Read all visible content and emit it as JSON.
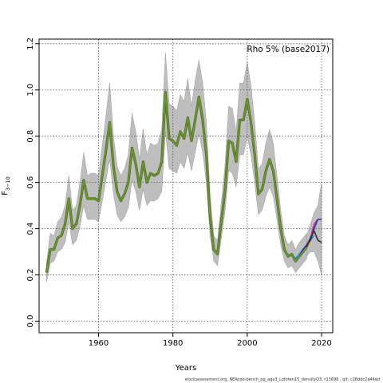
{
  "chart_data": {
    "type": "line",
    "title": "",
    "annotation": "Rho 5% (base2017)",
    "xlabel": "Years",
    "ylabel": "F",
    "ylabel_subscript": "3−10",
    "xlim": [
      1944,
      2023
    ],
    "ylim": [
      -0.05,
      1.22
    ],
    "xticks": [
      1960,
      1980,
      2000,
      2020
    ],
    "yticks": [
      0.0,
      0.2,
      0.4,
      0.6,
      0.8,
      1.0,
      1.2
    ],
    "grid": true,
    "legend": "none",
    "band_color": "#bebebe",
    "main_series": {
      "color": "#6a9a2a",
      "x": [
        1946,
        1947,
        1948,
        1949,
        1950,
        1951,
        1952,
        1953,
        1954,
        1955,
        1956,
        1957,
        1958,
        1959,
        1960,
        1961,
        1962,
        1963,
        1964,
        1965,
        1966,
        1967,
        1968,
        1969,
        1970,
        1971,
        1972,
        1973,
        1974,
        1975,
        1976,
        1977,
        1978,
        1979,
        1980,
        1981,
        1982,
        1983,
        1984,
        1985,
        1986,
        1987,
        1988,
        1989,
        1990,
        1991,
        1992,
        1993,
        1994,
        1995,
        1996,
        1997,
        1998,
        1999,
        2000,
        2001,
        2002,
        2003,
        2004,
        2005,
        2006,
        2007,
        2008,
        2009,
        2010,
        2011,
        2012,
        2013,
        2014,
        2015,
        2016
      ],
      "y": [
        0.21,
        0.31,
        0.31,
        0.36,
        0.37,
        0.42,
        0.53,
        0.4,
        0.42,
        0.5,
        0.61,
        0.53,
        0.53,
        0.53,
        0.52,
        0.63,
        0.74,
        0.86,
        0.67,
        0.56,
        0.52,
        0.55,
        0.6,
        0.75,
        0.68,
        0.58,
        0.69,
        0.6,
        0.64,
        0.63,
        0.64,
        0.69,
        0.99,
        0.79,
        0.78,
        0.76,
        0.82,
        0.79,
        0.88,
        0.78,
        0.87,
        0.97,
        0.87,
        0.72,
        0.45,
        0.31,
        0.29,
        0.43,
        0.56,
        0.78,
        0.77,
        0.69,
        0.87,
        0.87,
        0.96,
        0.86,
        0.72,
        0.55,
        0.57,
        0.65,
        0.7,
        0.65,
        0.53,
        0.4,
        0.31,
        0.28,
        0.29,
        0.26,
        0.28,
        0.3,
        0.32
      ],
      "lower": [
        0.17,
        0.25,
        0.26,
        0.3,
        0.31,
        0.34,
        0.43,
        0.33,
        0.35,
        0.41,
        0.5,
        0.44,
        0.44,
        0.44,
        0.43,
        0.52,
        0.61,
        0.7,
        0.55,
        0.46,
        0.43,
        0.45,
        0.49,
        0.61,
        0.56,
        0.48,
        0.57,
        0.5,
        0.52,
        0.52,
        0.53,
        0.56,
        0.82,
        0.66,
        0.65,
        0.64,
        0.69,
        0.66,
        0.73,
        0.65,
        0.73,
        0.81,
        0.73,
        0.6,
        0.37,
        0.26,
        0.24,
        0.36,
        0.47,
        0.65,
        0.64,
        0.58,
        0.72,
        0.72,
        0.8,
        0.72,
        0.6,
        0.46,
        0.48,
        0.54,
        0.58,
        0.54,
        0.44,
        0.33,
        0.26,
        0.23,
        0.24,
        0.21,
        0.23,
        0.25,
        0.27
      ],
      "upper": [
        0.25,
        0.38,
        0.37,
        0.43,
        0.45,
        0.5,
        0.63,
        0.48,
        0.5,
        0.6,
        0.73,
        0.63,
        0.64,
        0.64,
        0.63,
        0.76,
        0.89,
        1.03,
        0.8,
        0.67,
        0.63,
        0.66,
        0.72,
        0.9,
        0.82,
        0.7,
        0.83,
        0.72,
        0.77,
        0.76,
        0.77,
        0.83,
        1.16,
        0.94,
        0.93,
        0.91,
        0.98,
        0.95,
        1.05,
        0.93,
        1.04,
        1.13,
        1.03,
        0.86,
        0.54,
        0.37,
        0.35,
        0.51,
        0.67,
        0.93,
        0.92,
        0.82,
        1.03,
        1.03,
        1.12,
        1.02,
        0.86,
        0.66,
        0.68,
        0.77,
        0.83,
        0.77,
        0.63,
        0.48,
        0.37,
        0.33,
        0.35,
        0.31,
        0.34,
        0.36,
        0.38
      ]
    },
    "peel_series": [
      {
        "color": "#e0a030",
        "x": [
          2010,
          2011,
          2012,
          2013,
          2014,
          2015,
          2016,
          2017
        ],
        "y": [
          0.31,
          0.28,
          0.29,
          0.27,
          0.29,
          0.31,
          0.32,
          0.34
        ]
      },
      {
        "color": "#d020a0",
        "x": [
          2010,
          2011,
          2012,
          2013,
          2014,
          2015,
          2016,
          2017,
          2018,
          2019
        ],
        "y": [
          0.31,
          0.28,
          0.29,
          0.26,
          0.28,
          0.3,
          0.33,
          0.36,
          0.42,
          0.44
        ]
      },
      {
        "color": "#2080e0",
        "x": [
          2010,
          2011,
          2012,
          2013,
          2014,
          2015,
          2016,
          2017,
          2018
        ],
        "y": [
          0.31,
          0.28,
          0.29,
          0.27,
          0.29,
          0.31,
          0.33,
          0.35,
          0.37
        ]
      },
      {
        "color": "#3030a0",
        "x": [
          2010,
          2011,
          2012,
          2013,
          2014,
          2015,
          2016,
          2017,
          2018,
          2019,
          2020
        ],
        "y": [
          0.31,
          0.28,
          0.29,
          0.26,
          0.28,
          0.31,
          0.33,
          0.35,
          0.4,
          0.44,
          0.44
        ]
      },
      {
        "color": "#20a040",
        "x": [
          2010,
          2011,
          2012,
          2013,
          2014,
          2015,
          2016
        ],
        "y": [
          0.31,
          0.28,
          0.29,
          0.26,
          0.28,
          0.3,
          0.32
        ]
      },
      {
        "color": "#303030",
        "x": [
          2016,
          2017,
          2018,
          2019,
          2020
        ],
        "y": [
          0.32,
          0.36,
          0.39,
          0.35,
          0.34
        ]
      }
    ],
    "final_band": {
      "x": [
        2016,
        2017,
        2018,
        2019,
        2020
      ],
      "lower": [
        0.28,
        0.3,
        0.3,
        0.26,
        0.2
      ],
      "upper": [
        0.37,
        0.42,
        0.47,
        0.5,
        0.6
      ]
    }
  },
  "footer": "stockassessment.org, NEAcod-bench_pg_age3_Lofoten15_densityQ3, r13696 , git: c28ddc2a44ad"
}
